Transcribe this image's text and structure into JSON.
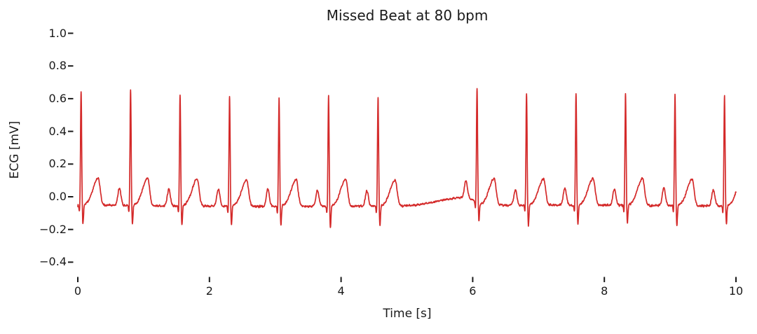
{
  "figure": {
    "background_color": "#ffffff",
    "text_color": "#1a1a1a"
  },
  "chart_data": {
    "type": "line",
    "title": "Missed Beat at 80 bpm",
    "xlabel": "Time [s]",
    "ylabel": "ECG [mV]",
    "xlim": [
      0,
      10
    ],
    "ylim": [
      -0.5,
      1.05
    ],
    "grid": false,
    "legend": false,
    "xticks": [
      0,
      2,
      4,
      6,
      8,
      10
    ],
    "xtick_labels": [
      "0",
      "2",
      "4",
      "6",
      "8",
      "10"
    ],
    "yticks": [
      1.0,
      0.8,
      0.6,
      0.4,
      0.2,
      0.0,
      -0.2,
      -0.4
    ],
    "ytick_labels": [
      "1.0",
      "0.8",
      "0.6",
      "0.4",
      "0.2",
      "0.0",
      "−0.2",
      "−0.4"
    ],
    "line_color": "#d42a2a",
    "heart_rate_bpm": 80,
    "beat_interval_s": 0.752,
    "beat_times_s": [
      0.05,
      0.802,
      1.554,
      2.306,
      3.058,
      3.81,
      4.562,
      6.066,
      6.818,
      7.57,
      8.322,
      9.074,
      9.826
    ],
    "missed_beat_time_s": 5.314,
    "duration_s": 10,
    "sampling_hz": 500,
    "baseline_mv": -0.055,
    "r_peak_mv": 0.63,
    "s_trough_mv": -0.17,
    "t_peak_mv": 0.105,
    "p_peak_mv": 0.05,
    "waveform": {
      "p_amp": 0.1,
      "p_offset": -0.17,
      "p_width": 0.033,
      "q_amp": -0.045,
      "q_offset": -0.024,
      "q_width": 0.01,
      "r_amp": 0.685,
      "r_width": 0.012,
      "s_amp": -0.12,
      "s_offset": 0.028,
      "s_width": 0.012,
      "t_amp": 0.16,
      "t_offset": 0.26,
      "t_width_left": 0.11,
      "t_width_right": 0.042
    },
    "pause_drift": {
      "start_s": 4.92,
      "peak_s": 5.9,
      "release_s": 6.18,
      "amp_mv": 0.048
    },
    "noise_mv": 0.006
  }
}
